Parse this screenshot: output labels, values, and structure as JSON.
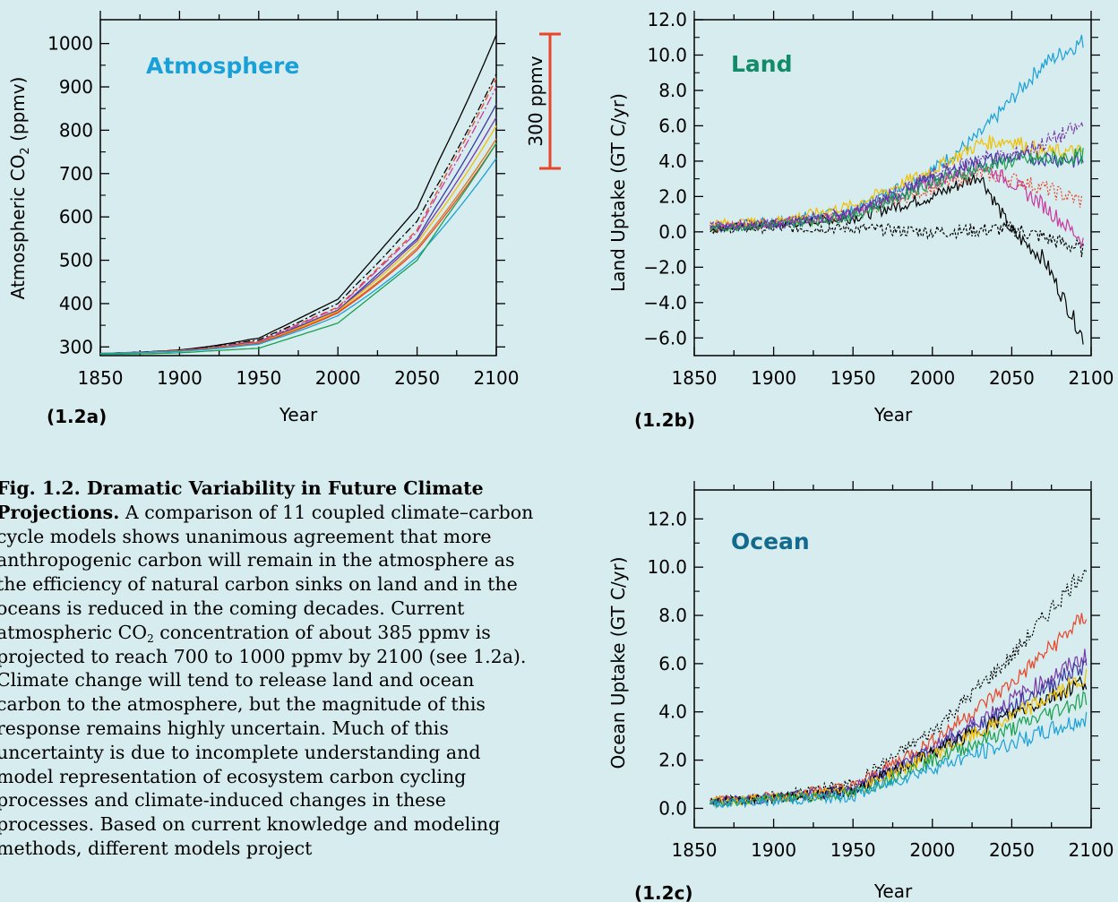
{
  "colors": {
    "background": "#d7ecee",
    "atmosphere_title": "#1aa0d8",
    "land_title": "#138a6a",
    "ocean_title": "#136a8e",
    "scalebar": "#e8462a"
  },
  "scalebar_label": "300 ppmv",
  "caption": {
    "title": "Fig. 1.2. Dramatic Variability in Future Climate Projections.",
    "body_1": " A comparison of 11 coupled climate–carbon cycle models shows unanimous agreement that more anthropogenic carbon will remain in the atmosphere as the efficiency of natural carbon sinks on land and in the oceans is reduced in the coming decades. Current atmospheric CO",
    "body_sub": "2",
    "body_2": " concentration of about 385 ppmv is projected to reach 700 to 1000 ppmv by 2100 (see 1.2a). Climate change will tend to release land and ocean carbon to the atmosphere, but the magnitude of this response remains highly uncertain. Much of this uncertainty is due to incomplete understanding and model representation of ecosystem carbon cycling processes and climate-induced changes in these processes. Based on current knowledge and modeling methods, different models project"
  },
  "chart_data": [
    {
      "id": "1.2a",
      "type": "line",
      "panel_label": "(1.2a)",
      "title": "Atmosphere",
      "xlabel": "Year",
      "ylabel_main": "Atmospheric CO",
      "ylabel_sub": "2",
      "ylabel_tail": " (ppmv)",
      "xlim": [
        1850,
        2100
      ],
      "ylim": [
        280,
        1055
      ],
      "xticks": [
        1850,
        1900,
        1950,
        2000,
        2050,
        2100
      ],
      "yticks": [
        300,
        400,
        500,
        600,
        700,
        800,
        900,
        1000
      ],
      "x": [
        1850,
        1900,
        1950,
        2000,
        2050,
        2100
      ],
      "series": [
        {
          "color": "#000000",
          "values": [
            285,
            297,
            320,
            410,
            620,
            1020
          ]
        },
        {
          "color": "#000000",
          "values": [
            285,
            296,
            316,
            400,
            590,
            930
          ],
          "dash": "8,3,2,3"
        },
        {
          "color": "#e8462a",
          "values": [
            285,
            295,
            313,
            392,
            570,
            920
          ],
          "dash": "7,4"
        },
        {
          "color": "#c83aa0",
          "values": [
            285,
            295,
            312,
            390,
            565,
            900
          ],
          "dash": "10,3,2,3"
        },
        {
          "color": "#3a3aa0",
          "values": [
            285,
            294,
            310,
            385,
            550,
            860
          ]
        },
        {
          "color": "#7a3aa8",
          "values": [
            285,
            294,
            310,
            384,
            545,
            830
          ]
        },
        {
          "color": "#f0c000",
          "values": [
            285,
            294,
            309,
            382,
            538,
            810
          ]
        },
        {
          "color": "#d97a1a",
          "values": [
            285,
            294,
            308,
            380,
            530,
            780
          ]
        },
        {
          "color": "#e8462a",
          "values": [
            285,
            293,
            308,
            378,
            525,
            770
          ]
        },
        {
          "color": "#1aa0d8",
          "values": [
            285,
            292,
            306,
            372,
            510,
            735
          ]
        },
        {
          "color": "#1aa050",
          "values": [
            283,
            287,
            297,
            355,
            500,
            770
          ]
        }
      ]
    },
    {
      "id": "1.2b",
      "type": "line",
      "panel_label": "(1.2b)",
      "title": "Land",
      "xlabel": "Year",
      "ylabel": "Land Uptake (GT C/yr)",
      "xlim": [
        1850,
        2100
      ],
      "ylim": [
        -7,
        12
      ],
      "xticks": [
        1850,
        1900,
        1950,
        2000,
        2050,
        2100
      ],
      "yticks": [
        "12.0",
        "10.0",
        "8.0",
        "6.0",
        "4.0",
        "2.0",
        "0.0",
        "−2.0",
        "−4.0",
        "−6.0"
      ],
      "ytick_values": [
        12,
        10,
        8,
        6,
        4,
        2,
        0,
        -2,
        -4,
        -6
      ],
      "x": [
        1860,
        1900,
        1950,
        2000,
        2030,
        2050,
        2070,
        2095
      ],
      "series": [
        {
          "color": "#1aa0d8",
          "values": [
            0.3,
            0.6,
            1.2,
            3.5,
            5.5,
            7.5,
            9.5,
            10.8
          ]
        },
        {
          "color": "#000000",
          "values": [
            0.2,
            0.4,
            0.8,
            2.0,
            3.2,
            0.0,
            -1.5,
            -6.0
          ]
        },
        {
          "color": "#000000",
          "values": [
            0.1,
            0.2,
            0.2,
            0.0,
            0.1,
            0.2,
            -0.3,
            -1.0
          ],
          "dash": "3,2"
        },
        {
          "color": "#e8462a",
          "values": [
            0.2,
            0.4,
            1.0,
            2.5,
            3.3,
            3.0,
            2.5,
            1.7
          ],
          "dash": "2,2"
        },
        {
          "color": "#c83aa0",
          "values": [
            0.3,
            0.5,
            1.0,
            2.8,
            3.8,
            2.8,
            1.5,
            -0.5
          ]
        },
        {
          "color": "#f0c000",
          "values": [
            0.5,
            0.6,
            1.5,
            3.5,
            5.0,
            5.2,
            4.5,
            4.5
          ]
        },
        {
          "color": "#3a3aa0",
          "values": [
            0.2,
            0.4,
            1.0,
            3.0,
            4.0,
            4.2,
            4.2,
            4.0
          ]
        },
        {
          "color": "#1aa050",
          "values": [
            0.2,
            0.4,
            0.9,
            2.8,
            3.6,
            4.0,
            4.1,
            4.3
          ]
        },
        {
          "color": "#7a3aa8",
          "values": [
            0.4,
            0.5,
            1.1,
            3.2,
            4.2,
            4.3,
            5.0,
            6.0
          ],
          "dash": "6,2,2,2"
        }
      ]
    },
    {
      "id": "1.2c",
      "type": "line",
      "panel_label": "(1.2c)",
      "title": "Ocean",
      "xlabel": "Year",
      "ylabel": "Ocean Uptake (GT C/yr)",
      "xlim": [
        1850,
        2100
      ],
      "ylim": [
        -0.8,
        13.2
      ],
      "xticks": [
        1850,
        1900,
        1950,
        2000,
        2050,
        2100
      ],
      "yticks": [
        "12.0",
        "10.0",
        "8.0",
        "6.0",
        "4.0",
        "2.0",
        "0.0"
      ],
      "ytick_values": [
        12,
        10,
        8,
        6,
        4,
        2,
        0
      ],
      "x": [
        1860,
        1900,
        1950,
        2000,
        2050,
        2097
      ],
      "series": [
        {
          "color": "#000000",
          "values": [
            0.3,
            0.5,
            1.0,
            3.2,
            6.3,
            10.0
          ],
          "dash": "2,2"
        },
        {
          "color": "#e8462a",
          "values": [
            0.3,
            0.5,
            0.9,
            2.8,
            5.2,
            8.0
          ]
        },
        {
          "color": "#7a3aa8",
          "values": [
            0.3,
            0.4,
            0.8,
            2.5,
            4.5,
            6.3
          ]
        },
        {
          "color": "#3a3aa0",
          "values": [
            0.3,
            0.4,
            0.8,
            2.4,
            4.2,
            6.0
          ]
        },
        {
          "color": "#000000",
          "values": [
            0.3,
            0.4,
            0.7,
            2.3,
            3.9,
            5.3
          ]
        },
        {
          "color": "#f0c000",
          "values": [
            0.3,
            0.4,
            0.7,
            2.2,
            3.8,
            5.4
          ]
        },
        {
          "color": "#1aa050",
          "values": [
            0.2,
            0.4,
            0.6,
            2.0,
            3.3,
            4.6
          ]
        },
        {
          "color": "#1aa0d8",
          "values": [
            0.2,
            0.3,
            0.5,
            1.7,
            2.7,
            3.7
          ]
        }
      ]
    }
  ]
}
